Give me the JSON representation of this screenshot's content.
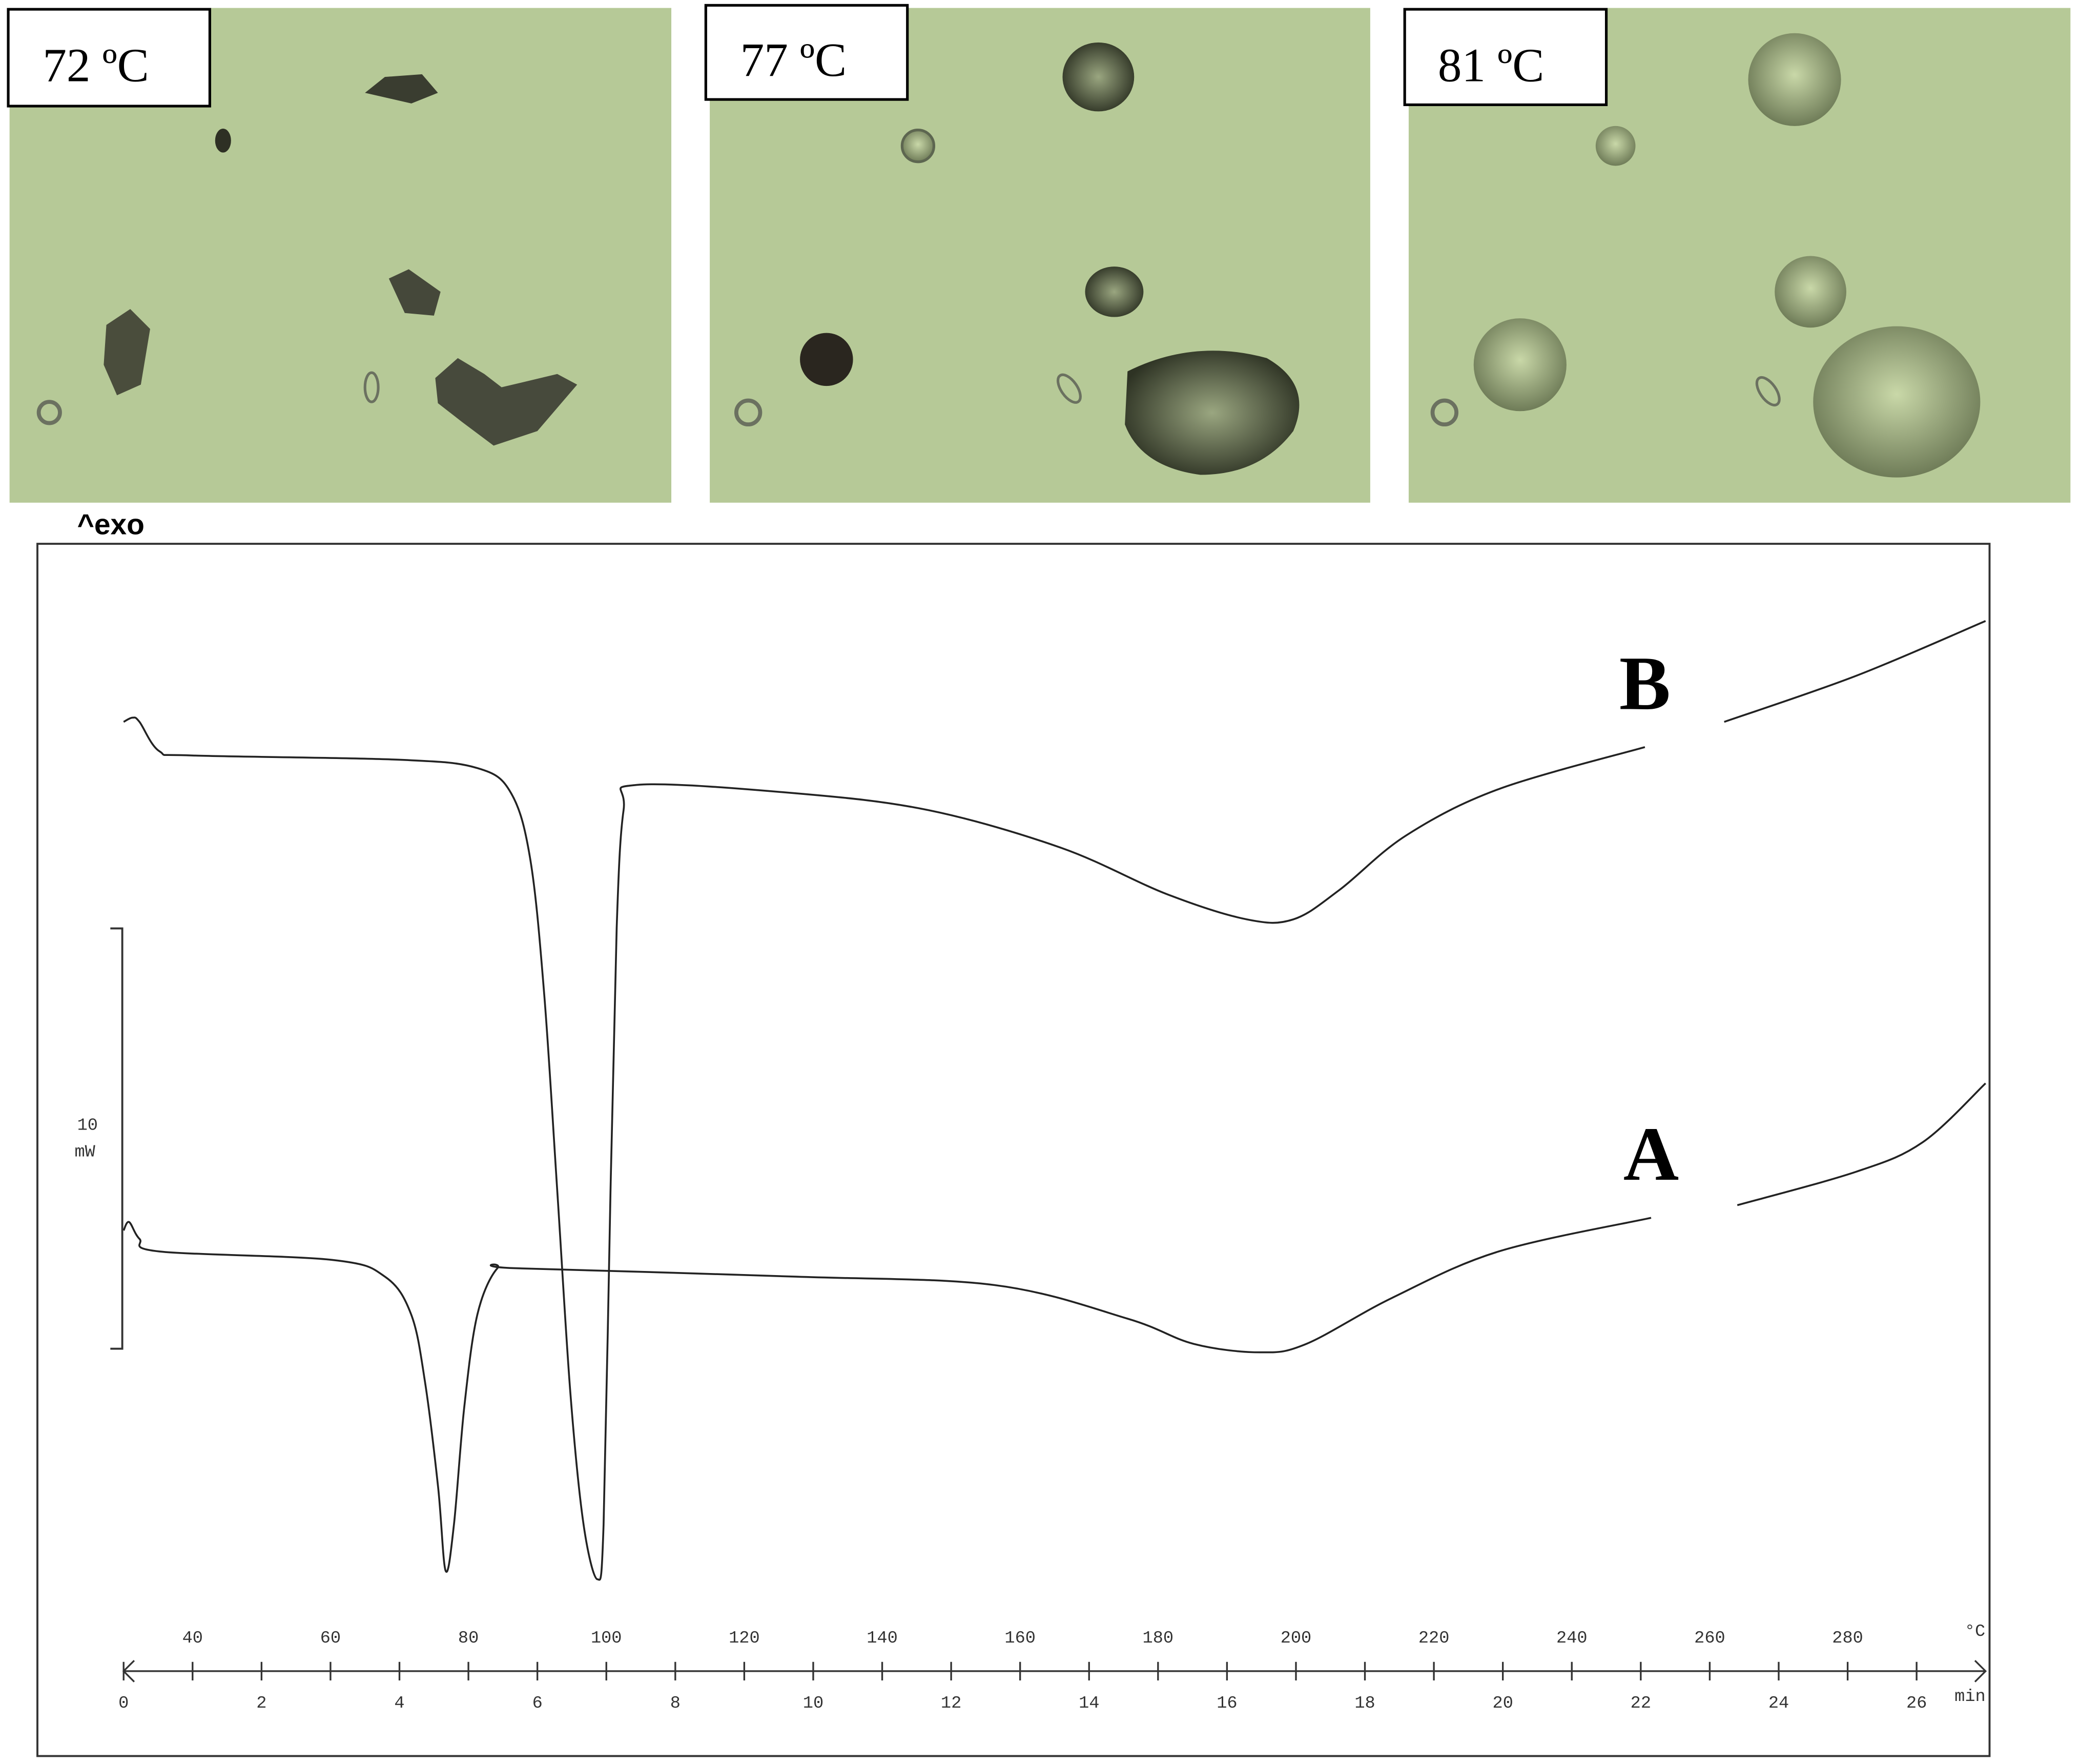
{
  "micrographs": [
    "72 ºC",
    "77 ºC",
    "81 ºC"
  ],
  "chart_data": {
    "type": "line",
    "ylabel": "^exo",
    "xlabel": "°C",
    "x2label": "min",
    "xlim": [
      30,
      300
    ],
    "xticks": [
      40,
      60,
      80,
      100,
      120,
      140,
      160,
      180,
      200,
      220,
      240,
      260,
      280
    ],
    "x2lim": [
      0,
      27
    ],
    "x2ticks": [
      0,
      2,
      4,
      6,
      8,
      10,
      12,
      14,
      16,
      18,
      20,
      22,
      24,
      26
    ],
    "ylim": [
      -12,
      17
    ],
    "scale_bar": {
      "value": 10,
      "unit": "mW"
    },
    "series": [
      {
        "name": "B",
        "color": "#222222",
        "x": [
          30.0,
          31.3,
          32.3,
          35.2,
          40.0,
          69.8,
          81.3,
          86.2,
          89.0,
          91.0,
          92.9,
          94.8,
          96.7,
          98.7,
          99.6,
          100.6,
          101.5,
          102.5,
          104.4,
          127.5,
          146.7,
          166.0,
          181.3,
          192.9,
          199.6,
          206.3,
          216.0,
          229.4,
          250.6,
          256.4,
          262.1,
          281.3,
          300.0
        ],
        "values": [
          12.7,
          12.8,
          12.7,
          12.0,
          11.9,
          11.8,
          11.6,
          11.0,
          9.4,
          6.2,
          1.5,
          -3.3,
          -6.4,
          -7.7,
          -6.4,
          1.5,
          7.8,
          10.6,
          11.2,
          11.0,
          10.6,
          9.7,
          8.6,
          8.0,
          8.0,
          8.7,
          10.0,
          11.1,
          12.1,
          null,
          12.7,
          13.8,
          15.1
        ]
      },
      {
        "name": "A",
        "color": "#222222",
        "x": [
          30.0,
          30.8,
          32.3,
          35.2,
          60.2,
          67.9,
          71.7,
          73.7,
          75.6,
          76.7,
          77.9,
          79.4,
          81.3,
          84.2,
          87.1,
          127.5,
          156.3,
          175.6,
          185.2,
          194.8,
          201.5,
          214.0,
          229.4,
          251.5,
          256.4,
          264.0,
          281.3,
          290.9,
          300.0
        ],
        "values": [
          0.6,
          0.8,
          0.4,
          0.1,
          -0.1,
          -0.5,
          -1.4,
          -3.0,
          -5.5,
          -7.5,
          -6.4,
          -3.6,
          -1.4,
          -0.3,
          -0.3,
          -0.5,
          -0.7,
          -1.5,
          -2.1,
          -2.3,
          -2.1,
          -1.0,
          0.1,
          0.9,
          null,
          1.2,
          2.0,
          2.7,
          4.1
        ]
      }
    ]
  }
}
